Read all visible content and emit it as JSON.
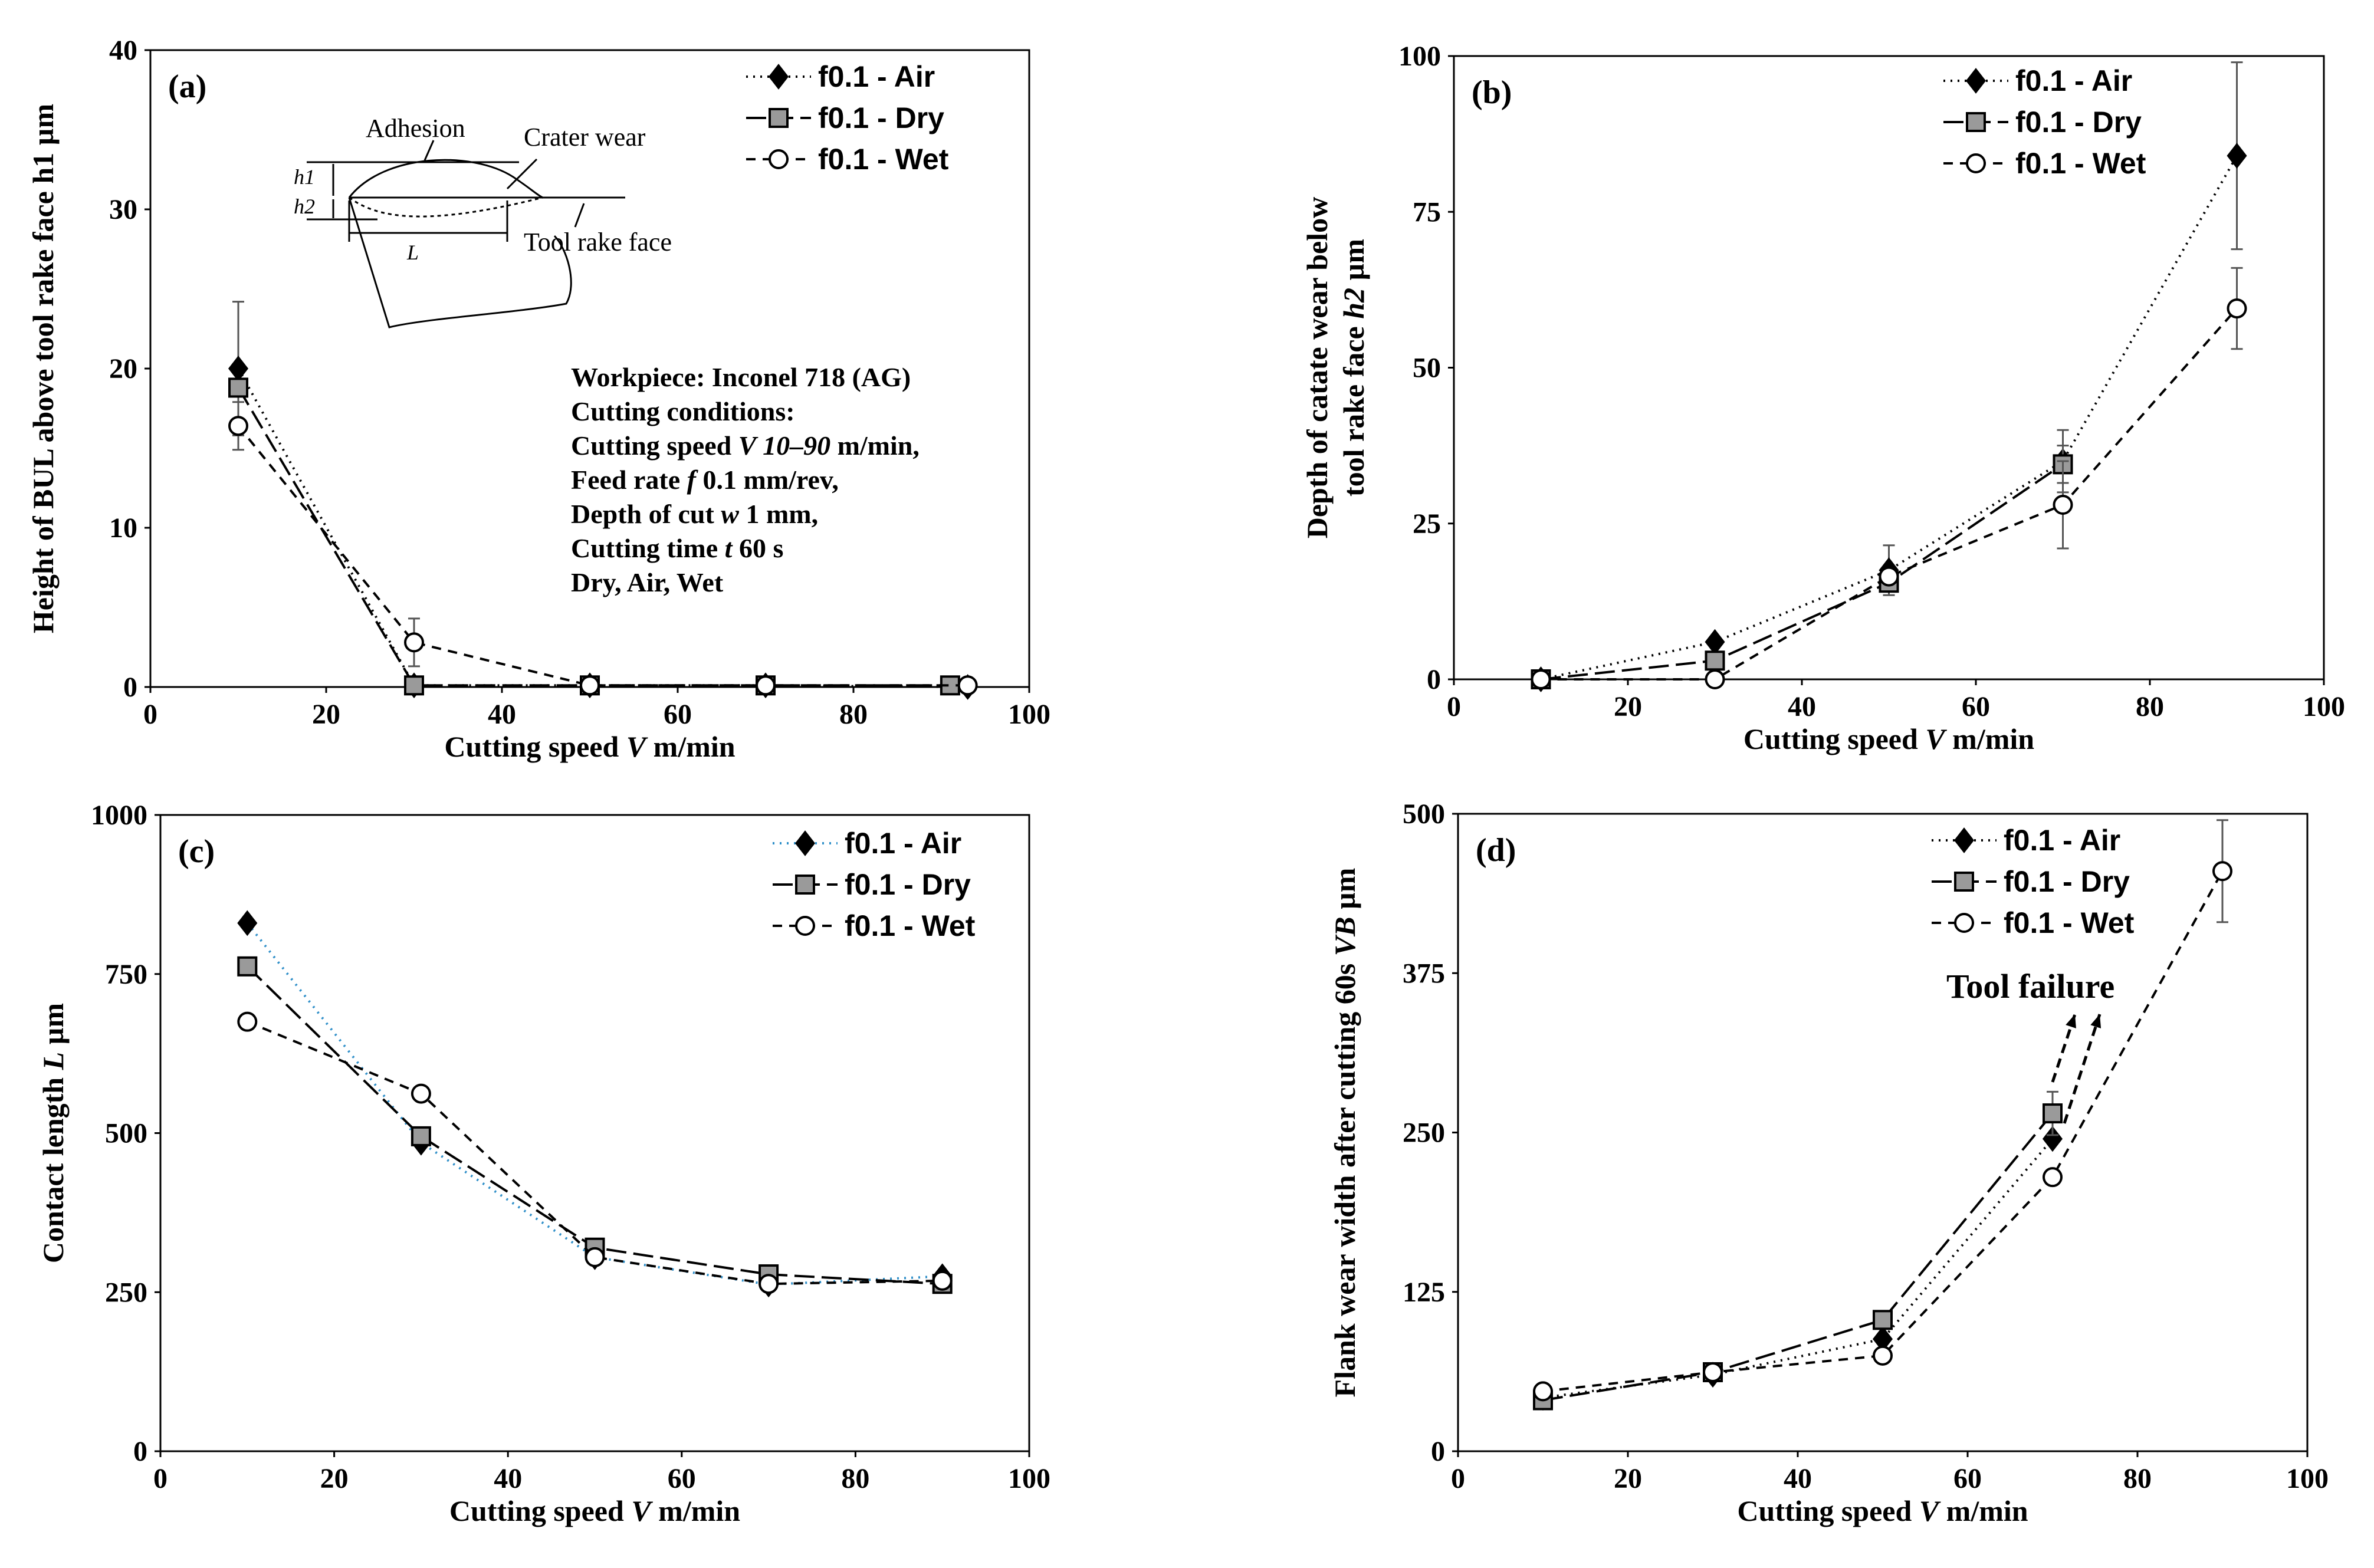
{
  "chart_data": [
    {
      "type": "line",
      "panel_label": "(a)",
      "xlabel": "Cutting speed V m/min",
      "ylabel": "Height of BUL above tool rake face h1 µm",
      "xlim": [
        0,
        100
      ],
      "ylim": [
        0,
        40
      ],
      "xticks": [
        "0",
        "20",
        "40",
        "60",
        "80",
        "100"
      ],
      "yticks": [
        "0",
        "10",
        "20",
        "30",
        "40"
      ],
      "grid": false,
      "legend_position": "top-right",
      "series": [
        {
          "name": "f0.1 - Air",
          "style": "dotted",
          "marker": "diamond",
          "x": [
            10,
            30,
            50,
            70,
            93
          ],
          "y": [
            20.0,
            0.1,
            0.1,
            0.1,
            0.0
          ],
          "err": [
            4.2,
            0,
            0,
            0,
            0
          ]
        },
        {
          "name": "f0.1 - Dry",
          "style": "longdash",
          "marker": "square",
          "x": [
            10,
            30,
            50,
            70,
            91
          ],
          "y": [
            18.8,
            0.1,
            0.1,
            0.1,
            0.1
          ],
          "err": [
            0,
            0,
            0,
            0,
            0
          ]
        },
        {
          "name": "f0.1 - Wet",
          "style": "dash",
          "marker": "circle",
          "x": [
            10,
            30,
            50,
            70,
            93
          ],
          "y": [
            16.4,
            2.8,
            0.1,
            0.1,
            0.1
          ],
          "err": [
            1.5,
            1.5,
            0,
            0,
            0
          ]
        }
      ],
      "inset_labels": {
        "adhesion": "Adhesion",
        "crater": "Crater wear",
        "rake": "Tool rake face",
        "h1": "h1",
        "h2": "h2",
        "L": "L"
      },
      "notes": [
        "Workpiece: Inconel 718 (AG)",
        "Cutting conditions:",
        "Cutting speed V 10–90 m/min,",
        "Feed rate f 0.1 mm/rev,",
        "Depth of cut w 1 mm,",
        "Cutting time t 60 s",
        "Dry, Air, Wet"
      ]
    },
    {
      "type": "line",
      "panel_label": "(b)",
      "xlabel": "Cutting speed V m/min",
      "ylabel_lines": [
        "Depth of catate wear below",
        "tool rake face h2 µm"
      ],
      "xlim": [
        0,
        100
      ],
      "ylim": [
        0,
        100
      ],
      "xticks": [
        "0",
        "20",
        "40",
        "60",
        "80",
        "100"
      ],
      "yticks": [
        "0",
        "25",
        "50",
        "75",
        "100"
      ],
      "grid": false,
      "legend_position": "top-right",
      "series": [
        {
          "name": "f0.1 - Air",
          "style": "dotted",
          "marker": "diamond",
          "x": [
            10,
            30,
            50,
            70,
            90
          ],
          "y": [
            0,
            6,
            17.5,
            35,
            84
          ],
          "err": [
            0,
            0,
            4,
            5,
            15
          ]
        },
        {
          "name": "f0.1 - Dry",
          "style": "longdash",
          "marker": "square",
          "x": [
            10,
            30,
            50,
            70
          ],
          "y": [
            0,
            3,
            15.5,
            34.5
          ],
          "err": [
            0,
            0,
            0,
            3
          ]
        },
        {
          "name": "f0.1 - Wet",
          "style": "dash",
          "marker": "circle",
          "x": [
            10,
            30,
            50,
            70,
            90
          ],
          "y": [
            0,
            0,
            16.5,
            28,
            59.5
          ],
          "err": [
            0,
            0,
            0,
            7,
            6.5
          ]
        }
      ]
    },
    {
      "type": "line",
      "panel_label": "(c)",
      "xlabel": "Cutting speed V m/min",
      "ylabel": "Contact length L µm",
      "xlim": [
        0,
        100
      ],
      "ylim": [
        0,
        1000
      ],
      "xticks": [
        "0",
        "20",
        "40",
        "60",
        "80",
        "100"
      ],
      "yticks": [
        "0",
        "250",
        "500",
        "750",
        "1000"
      ],
      "grid": false,
      "legend_position": "top-right",
      "series": [
        {
          "name": "f0.1 - Air",
          "style": "dotted-blue",
          "marker": "diamond",
          "x": [
            10,
            30,
            50,
            70,
            90
          ],
          "y": [
            830,
            485,
            305,
            262,
            275
          ]
        },
        {
          "name": "f0.1 - Dry",
          "style": "longdash",
          "marker": "square",
          "x": [
            10,
            30,
            50,
            70,
            90
          ],
          "y": [
            762,
            495,
            320,
            278,
            263
          ]
        },
        {
          "name": "f0.1 - Wet",
          "style": "dash",
          "marker": "circle",
          "x": [
            10,
            30,
            50,
            70,
            90
          ],
          "y": [
            675,
            562,
            305,
            263,
            268
          ]
        }
      ]
    },
    {
      "type": "line",
      "panel_label": "(d)",
      "xlabel": "Cutting speed V m/min",
      "ylabel": "Flank wear width after cutting 60s VB µm",
      "xlim": [
        0,
        100
      ],
      "ylim": [
        0,
        500
      ],
      "xticks": [
        "0",
        "20",
        "40",
        "60",
        "80",
        "100"
      ],
      "yticks": [
        "0",
        "125",
        "250",
        "375",
        "500"
      ],
      "grid": false,
      "legend_position": "top-right",
      "annotation": "Tool failure",
      "series": [
        {
          "name": "f0.1 - Air",
          "style": "dotted",
          "marker": "diamond",
          "x": [
            10,
            30,
            50,
            70
          ],
          "y": [
            42,
            60,
            88,
            245
          ],
          "err": [
            0,
            0,
            0,
            0
          ]
        },
        {
          "name": "f0.1 - Dry",
          "style": "longdash",
          "marker": "square",
          "x": [
            10,
            30,
            50,
            70
          ],
          "y": [
            40,
            62,
            103,
            265
          ],
          "err": [
            0,
            0,
            0,
            17
          ]
        },
        {
          "name": "f0.1 - Wet",
          "style": "dash",
          "marker": "circle",
          "x": [
            10,
            30,
            50,
            70,
            90
          ],
          "y": [
            47,
            62,
            75,
            215,
            455
          ],
          "err": [
            0,
            0,
            0,
            0,
            40
          ]
        }
      ]
    }
  ]
}
